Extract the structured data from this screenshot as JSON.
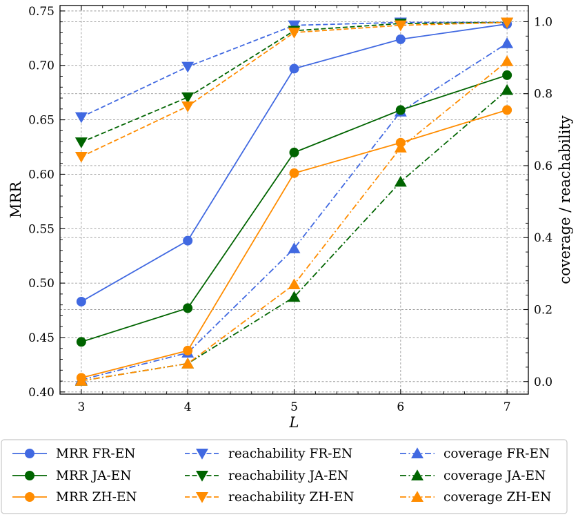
{
  "chart_data": {
    "type": "line",
    "x": [
      3,
      4,
      5,
      6,
      7
    ],
    "xlabel": "L",
    "ylabel_left": "MRR",
    "ylabel_right": "coverage / reachability",
    "xlim": [
      2.8,
      7.2
    ],
    "ylim_left": [
      0.398,
      0.755
    ],
    "ylim_right": [
      -0.035,
      1.045
    ],
    "xticks": [
      "3",
      "4",
      "5",
      "6",
      "7"
    ],
    "yticks_left": [
      "0.40",
      "0.45",
      "0.50",
      "0.55",
      "0.60",
      "0.65",
      "0.70",
      "0.75"
    ],
    "yticks_right": [
      "0.0",
      "0.2",
      "0.4",
      "0.6",
      "0.8",
      "1.0"
    ],
    "grid": true,
    "legend_position": "bottom",
    "series": [
      {
        "name": "MRR FR-EN",
        "axis": "left",
        "color": "#4169e1",
        "marker": "circle",
        "linestyle": "solid",
        "values": [
          0.483,
          0.539,
          0.697,
          0.724,
          0.738
        ]
      },
      {
        "name": "reachability FR-EN",
        "axis": "right",
        "color": "#4169e1",
        "marker": "triangle-down",
        "linestyle": "dashed",
        "values": [
          0.735,
          0.875,
          0.99,
          0.998,
          0.998
        ]
      },
      {
        "name": "coverage FR-EN",
        "axis": "right",
        "color": "#4169e1",
        "marker": "triangle-up",
        "linestyle": "dashdot",
        "values": [
          0.005,
          0.08,
          0.37,
          0.75,
          0.94
        ]
      },
      {
        "name": "MRR JA-EN",
        "axis": "left",
        "color": "#006400",
        "marker": "circle",
        "linestyle": "solid",
        "values": [
          0.446,
          0.477,
          0.62,
          0.659,
          0.691
        ]
      },
      {
        "name": "reachability JA-EN",
        "axis": "right",
        "color": "#006400",
        "marker": "triangle-down",
        "linestyle": "dashed",
        "values": [
          0.665,
          0.79,
          0.975,
          0.995,
          0.998
        ]
      },
      {
        "name": "coverage JA-EN",
        "axis": "right",
        "color": "#006400",
        "marker": "triangle-up",
        "linestyle": "dashdot",
        "values": [
          0.002,
          0.05,
          0.235,
          0.555,
          0.81
        ]
      },
      {
        "name": "MRR ZH-EN",
        "axis": "left",
        "color": "#ff8c00",
        "marker": "circle",
        "linestyle": "solid",
        "values": [
          0.413,
          0.438,
          0.601,
          0.629,
          0.659
        ]
      },
      {
        "name": "reachability ZH-EN",
        "axis": "right",
        "color": "#ff8c00",
        "marker": "triangle-down",
        "linestyle": "dashed",
        "values": [
          0.625,
          0.765,
          0.97,
          0.99,
          0.998
        ]
      },
      {
        "name": "coverage ZH-EN",
        "axis": "right",
        "color": "#ff8c00",
        "marker": "triangle-up",
        "linestyle": "dashdot",
        "values": [
          0.002,
          0.05,
          0.27,
          0.65,
          0.89
        ]
      }
    ],
    "legend_layout": [
      [
        "MRR FR-EN",
        "MRR JA-EN",
        "MRR ZH-EN"
      ],
      [
        "reachability FR-EN",
        "reachability JA-EN",
        "reachability ZH-EN"
      ],
      [
        "coverage FR-EN",
        "coverage JA-EN",
        "coverage ZH-EN"
      ]
    ]
  }
}
